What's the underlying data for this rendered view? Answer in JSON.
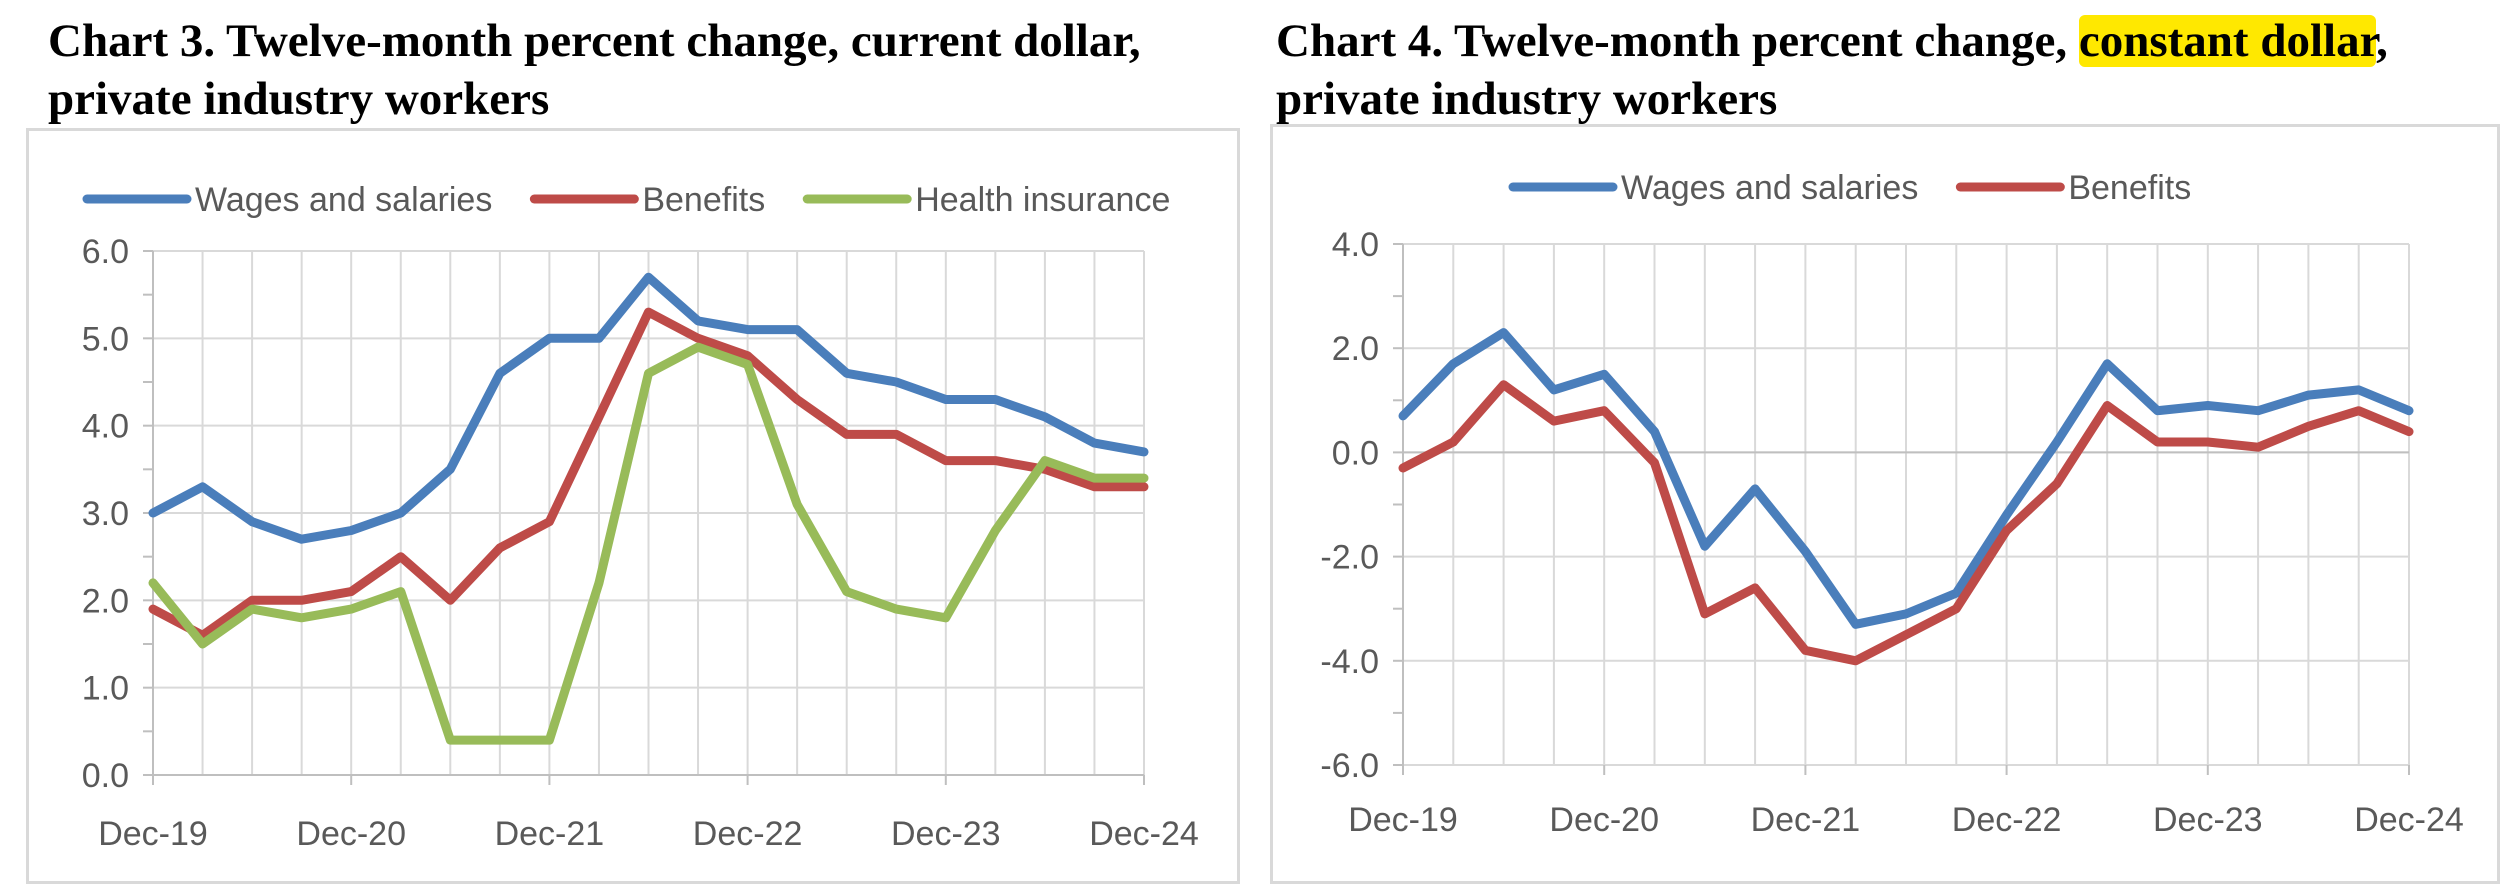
{
  "chart_data": [
    {
      "type": "line",
      "title": "Chart 3. Twelve-month percent change, current dollar, private industry workers",
      "x_tick_labels": [
        "Dec-19",
        "Dec-20",
        "Dec-21",
        "Dec-22",
        "Dec-23",
        "Dec-24"
      ],
      "x": [
        "Dec-19",
        "Mar-20",
        "Jun-20",
        "Sep-20",
        "Dec-20",
        "Mar-21",
        "Jun-21",
        "Sep-21",
        "Dec-21",
        "Mar-22",
        "Jun-22",
        "Sep-22",
        "Dec-22",
        "Mar-23",
        "Jun-23",
        "Sep-23",
        "Dec-23",
        "Mar-24",
        "Jun-24",
        "Sep-24",
        "Dec-24"
      ],
      "ylim": [
        0,
        6
      ],
      "y_ticks": [
        "0.0",
        "1.0",
        "2.0",
        "3.0",
        "4.0",
        "5.0",
        "6.0"
      ],
      "grid": true,
      "legend_position": "top",
      "series": [
        {
          "name": "Wages and salaries",
          "color": "#4a7ebb",
          "values": [
            3.0,
            3.3,
            2.9,
            2.7,
            2.8,
            3.0,
            3.5,
            4.6,
            5.0,
            5.0,
            5.7,
            5.2,
            5.1,
            5.1,
            4.6,
            4.5,
            4.3,
            4.3,
            4.1,
            3.8,
            3.7
          ]
        },
        {
          "name": "Benefits",
          "color": "#be4b48",
          "values": [
            1.9,
            1.6,
            2.0,
            2.0,
            2.1,
            2.5,
            2.0,
            2.6,
            2.9,
            4.1,
            5.3,
            5.0,
            4.8,
            4.3,
            3.9,
            3.9,
            3.6,
            3.6,
            3.5,
            3.3,
            3.3
          ]
        },
        {
          "name": "Health insurance",
          "color": "#98bb59",
          "values": [
            2.2,
            1.5,
            1.9,
            1.8,
            1.9,
            2.1,
            0.4,
            0.4,
            0.4,
            2.2,
            4.6,
            4.9,
            4.7,
            3.1,
            2.1,
            1.9,
            1.8,
            2.8,
            3.6,
            3.4,
            3.4
          ]
        }
      ]
    },
    {
      "type": "line",
      "title_pre": "Chart 4. Twelve-month percent change, ",
      "title_highlight": "constant dollar",
      "title_post": ", private industry workers",
      "x_tick_labels": [
        "Dec-19",
        "Dec-20",
        "Dec-21",
        "Dec-22",
        "Dec-23",
        "Dec-24"
      ],
      "x": [
        "Dec-19",
        "Mar-20",
        "Jun-20",
        "Sep-20",
        "Dec-20",
        "Mar-21",
        "Jun-21",
        "Sep-21",
        "Dec-21",
        "Mar-22",
        "Jun-22",
        "Sep-22",
        "Dec-22",
        "Mar-23",
        "Jun-23",
        "Sep-23",
        "Dec-23",
        "Mar-24",
        "Jun-24",
        "Sep-24",
        "Dec-24"
      ],
      "ylim": [
        -6,
        4
      ],
      "y_ticks": [
        "-6.0",
        "-4.0",
        "-2.0",
        "0.0",
        "2.0",
        "4.0"
      ],
      "grid": true,
      "legend_position": "top",
      "highlight_color": "#ffe800",
      "series": [
        {
          "name": "Wages and salaries",
          "color": "#4a7ebb",
          "values": [
            0.7,
            1.7,
            2.3,
            1.2,
            1.5,
            0.4,
            -1.8,
            -0.7,
            -1.9,
            -3.3,
            -3.1,
            -2.7,
            -1.2,
            0.2,
            1.7,
            0.8,
            0.9,
            0.8,
            1.1,
            1.2,
            0.8
          ]
        },
        {
          "name": "Benefits",
          "color": "#be4b48",
          "values": [
            -0.3,
            0.2,
            1.3,
            0.6,
            0.8,
            -0.2,
            -3.1,
            -2.6,
            -3.8,
            -4.0,
            -3.5,
            -3.0,
            -1.5,
            -0.6,
            0.9,
            0.2,
            0.2,
            0.1,
            0.5,
            0.8,
            0.4
          ]
        }
      ]
    }
  ]
}
